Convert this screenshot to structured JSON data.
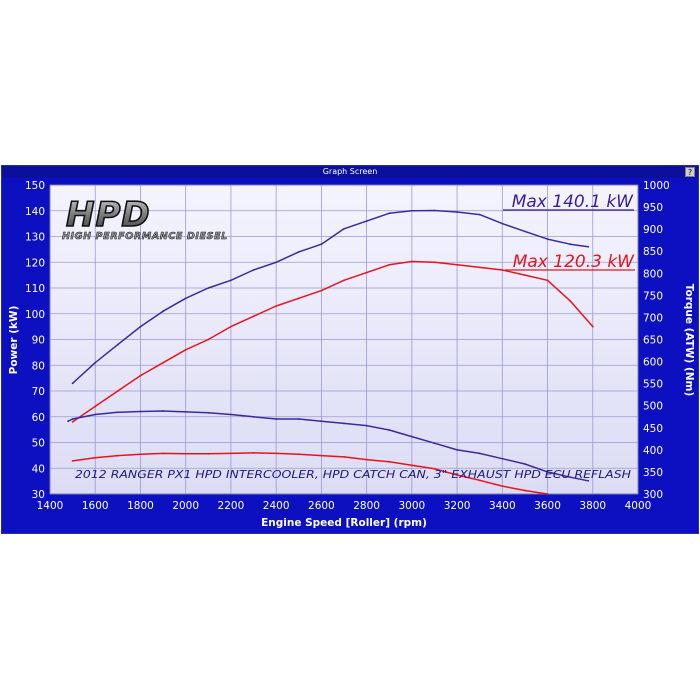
{
  "window": {
    "title": "Graph Screen",
    "help_label": "?"
  },
  "logo": {
    "text": "HPD",
    "subtext": "HIGH PERFORMANCE DIESEL"
  },
  "chart_data": {
    "type": "line",
    "title": "",
    "subtitle": "2012 RANGER PX1 HPD INTERCOOLER, HPD CATCH CAN, 3\" EXHAUST HPD ECU REFLASH",
    "xlabel": "Engine Speed [Roller] (rpm)",
    "ylabel_left": "Power (kW)",
    "ylabel_right": "Torque (ATW) (Nm)",
    "xlim": [
      1400,
      4000
    ],
    "ylim_left": [
      30,
      150
    ],
    "ylim_right": [
      300,
      1000
    ],
    "x_ticks": [
      "1400",
      "1600",
      "1800",
      "2000",
      "2200",
      "2400",
      "2600",
      "2800",
      "3000",
      "3200",
      "3400",
      "3600",
      "3800",
      "4000"
    ],
    "y_left_ticks": [
      "30",
      "40",
      "50",
      "60",
      "70",
      "80",
      "90",
      "100",
      "110",
      "120",
      "130",
      "140",
      "150"
    ],
    "y_right_ticks": [
      "300",
      "350",
      "400",
      "450",
      "500",
      "550",
      "600",
      "650",
      "700",
      "750",
      "800",
      "850",
      "900",
      "950",
      "1000"
    ],
    "grid": true,
    "annotations": [
      {
        "text": "Max 140.1 kW",
        "color": "#3a1c9e"
      },
      {
        "text": "Max 120.3 kW",
        "color": "#e8141c"
      }
    ],
    "series": [
      {
        "axis": "left",
        "color": "#3a2aa0",
        "x": [
          1500,
          1600,
          1700,
          1800,
          1900,
          2000,
          2100,
          2200,
          2300,
          2400,
          2500,
          2600,
          2700,
          2800,
          2900,
          3000,
          3100,
          3200,
          3300,
          3400,
          3500,
          3600,
          3700,
          3780
        ],
        "y": [
          73,
          81,
          88,
          95,
          101,
          106,
          110,
          113,
          117,
          120,
          124,
          127,
          133,
          136,
          139,
          140,
          140.1,
          139.5,
          138.5,
          135,
          132,
          129,
          127,
          126
        ]
      },
      {
        "axis": "left",
        "color": "#e8141c",
        "x": [
          1500,
          1600,
          1700,
          1800,
          1900,
          2000,
          2100,
          2200,
          2300,
          2400,
          2500,
          2600,
          2700,
          2800,
          2900,
          3000,
          3100,
          3200,
          3300,
          3400,
          3500,
          3600,
          3700,
          3800
        ],
        "y": [
          58,
          64,
          70,
          76,
          81,
          86,
          90,
          95,
          99,
          103,
          106,
          109,
          113,
          116,
          119,
          120.3,
          120,
          119,
          118,
          117,
          115,
          113,
          105,
          95
        ]
      },
      {
        "axis": "right",
        "color": "#3a2aa0",
        "x": [
          1480,
          1500,
          1600,
          1700,
          1800,
          1900,
          2000,
          2100,
          2200,
          2300,
          2400,
          2500,
          2600,
          2700,
          2800,
          2900,
          3000,
          3100,
          3200,
          3300,
          3400,
          3500,
          3600,
          3700,
          3780
        ],
        "y": [
          465,
          470,
          480,
          485,
          487,
          488,
          486,
          484,
          480,
          475,
          470,
          470,
          465,
          460,
          455,
          445,
          430,
          415,
          400,
          392,
          380,
          368,
          350,
          338,
          330
        ]
      },
      {
        "axis": "right",
        "color": "#e8141c",
        "x": [
          1500,
          1600,
          1700,
          1800,
          1900,
          2000,
          2100,
          2200,
          2300,
          2400,
          2500,
          2600,
          2700,
          2800,
          2900,
          3000,
          3100,
          3200,
          3300,
          3400,
          3500,
          3600
        ],
        "y": [
          375,
          382,
          387,
          390,
          392,
          391,
          391,
          392,
          393,
          392,
          390,
          387,
          384,
          378,
          373,
          365,
          357,
          343,
          331,
          318,
          308,
          300
        ]
      }
    ]
  }
}
